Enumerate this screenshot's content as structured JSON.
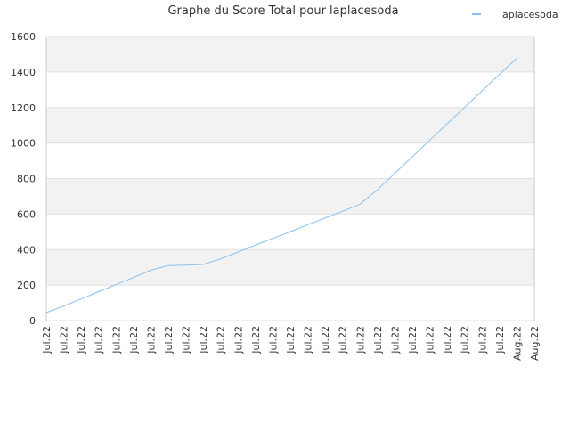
{
  "chart_data": {
    "type": "line",
    "title": "Graphe du Score Total pour laplacesoda",
    "categories": [
      "Jul.22",
      "Jul.22",
      "Jul.22",
      "Jul.22",
      "Jul.22",
      "Jul.22",
      "Jul.22",
      "Jul.22",
      "Jul.22",
      "Jul.22",
      "Jul.22",
      "Jul.22",
      "Jul.22",
      "Jul.22",
      "Jul.22",
      "Jul.22",
      "Jul.22",
      "Jul.22",
      "Jul.22",
      "Jul.22",
      "Jul.22",
      "Jul.22",
      "Jul.22",
      "Jul.22",
      "Jul.22",
      "Jul.22",
      "Jul.22",
      "Aug.22",
      "Aug.22"
    ],
    "series": [
      {
        "name": "laplacesoda",
        "color": "#88c0ef",
        "values": [
          45,
          82,
          122,
          163,
          203,
          243,
          284,
          310,
          312,
          316,
          348,
          386,
          425,
          463,
          501,
          540,
          578,
          616,
          655,
          737,
          830,
          923,
          1016,
          1109,
          1201,
          1294,
          1387,
          1479,
          null
        ]
      }
    ],
    "ylim": [
      0,
      1600
    ],
    "yticks": [
      0,
      200,
      400,
      600,
      800,
      1000,
      1200,
      1400,
      1600
    ],
    "grid": true,
    "legend": "top-right"
  }
}
